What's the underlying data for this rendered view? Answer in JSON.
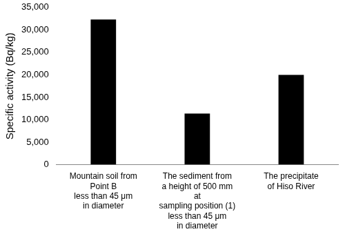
{
  "chart_data": {
    "type": "bar",
    "ylabel": "Specific activity (Bq/kg)",
    "categories": [
      [
        "Mountain soil from",
        "Point B",
        "less than 45 μm",
        "in diameter"
      ],
      [
        "The sediment from",
        "a height of 500 mm",
        "at",
        "sampling position (1)",
        "less than 45 μm",
        "in diameter"
      ],
      [
        "The precipitate",
        "of Hiso River"
      ]
    ],
    "values": [
      32300,
      11400,
      20000
    ],
    "color": "#000000",
    "ylim": [
      0,
      35000
    ],
    "yticks": [
      0,
      {
        "value": 5000,
        "label": "5,000"
      },
      {
        "value": 10000,
        "label": "10,000"
      },
      {
        "value": 15000,
        "label": "15,000"
      },
      {
        "value": 20000,
        "label": "20,000"
      },
      {
        "value": 25000,
        "label": "25,000"
      },
      {
        "value": 30000,
        "label": "30,000"
      },
      {
        "value": 35000,
        "label": "35,000"
      }
    ],
    "grid": false
  }
}
